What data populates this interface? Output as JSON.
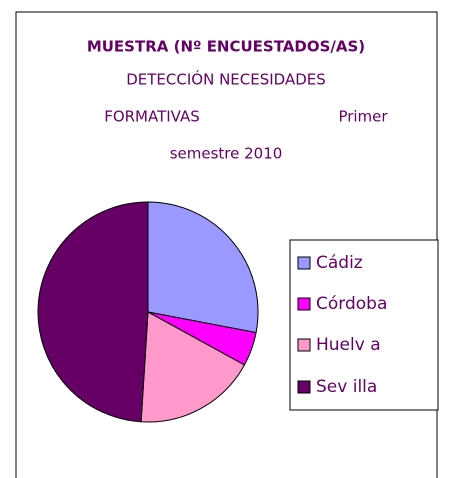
{
  "chart_data": {
    "type": "pie",
    "title": "MUESTRA (Nº ENCUESTADOS/AS)",
    "subtitle": [
      "DETECCIÓN NECESIDADES",
      "FORMATIVAS",
      "Primer",
      "semestre 2010"
    ],
    "categories": [
      "Cádiz",
      "Córdoba",
      "Huelv a",
      "Sev illa"
    ],
    "values": [
      28,
      5,
      18,
      49
    ],
    "colors": [
      "#9999ff",
      "#ff00ff",
      "#ff99cc",
      "#660066"
    ],
    "legend": "right"
  }
}
